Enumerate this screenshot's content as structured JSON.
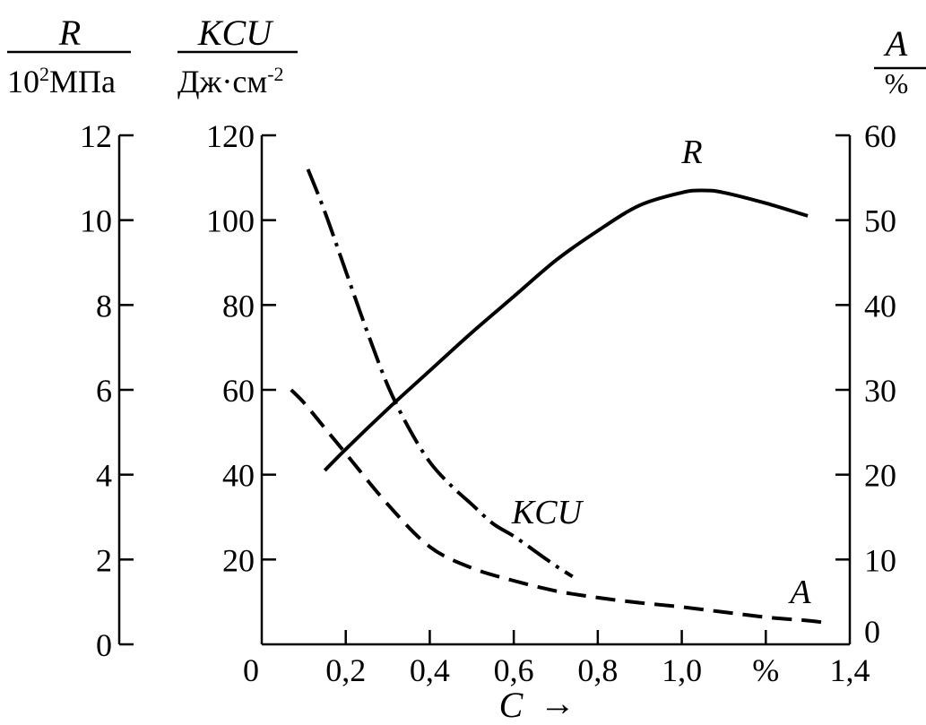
{
  "chart_data": {
    "type": "line",
    "axes": {
      "R": {
        "title": "R",
        "unit": "10",
        "unit_superscript": "2",
        "unit_tail": "МПа",
        "range": [
          0,
          12
        ],
        "ticks": [
          "0",
          "2",
          "4",
          "6",
          "8",
          "10",
          "12"
        ]
      },
      "KCU": {
        "title": "KCU",
        "unit": "Дж·см",
        "unit_superscript": "-2",
        "range": [
          0,
          120
        ],
        "ticks": [
          "20",
          "40",
          "60",
          "80",
          "100",
          "120"
        ]
      },
      "A": {
        "title": "A",
        "unit": "%",
        "range": [
          0,
          60
        ],
        "ticks": [
          "0",
          "10",
          "20",
          "30",
          "40",
          "50",
          "60"
        ]
      },
      "x": {
        "title": "C",
        "arrow": "→",
        "range": [
          0,
          1.4
        ],
        "ticks": [
          "0",
          "0,2",
          "0,4",
          "0,6",
          "0,8",
          "1,0",
          "%",
          "1,4"
        ]
      }
    },
    "series": [
      {
        "name": "R",
        "axis": "R",
        "style": "solid",
        "x": [
          0.15,
          0.2,
          0.3,
          0.4,
          0.5,
          0.6,
          0.7,
          0.8,
          0.9,
          1.0,
          1.05,
          1.1,
          1.2,
          1.3
        ],
        "y": [
          4.1,
          4.6,
          5.55,
          6.45,
          7.35,
          8.2,
          9.05,
          9.75,
          10.35,
          10.65,
          10.7,
          10.65,
          10.4,
          10.1
        ]
      },
      {
        "name": "KCU",
        "axis": "KCU",
        "style": "dashdot",
        "x": [
          0.11,
          0.15,
          0.2,
          0.25,
          0.3,
          0.35,
          0.4,
          0.45,
          0.5,
          0.55,
          0.6,
          0.65,
          0.7,
          0.74
        ],
        "y": [
          112,
          102,
          88,
          74,
          61,
          51,
          43,
          37.5,
          33,
          28.5,
          25.5,
          22,
          18.5,
          16
        ]
      },
      {
        "name": "A",
        "axis": "A",
        "style": "dashed",
        "x": [
          0.07,
          0.1,
          0.15,
          0.2,
          0.3,
          0.4,
          0.5,
          0.6,
          0.7,
          0.8,
          0.9,
          1.0,
          1.1,
          1.2,
          1.3,
          1.35
        ],
        "y": [
          30,
          28.5,
          25.5,
          22.5,
          16.5,
          11.5,
          9,
          7.5,
          6.3,
          5.5,
          4.9,
          4.4,
          3.8,
          3.2,
          2.8,
          2.5
        ]
      }
    ],
    "labels": [
      "R",
      "KCU",
      "A"
    ]
  }
}
